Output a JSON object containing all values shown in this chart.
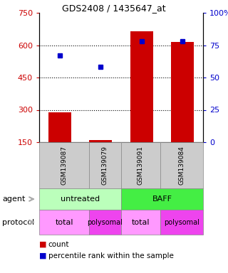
{
  "title": "GDS2408 / 1435647_at",
  "samples": [
    "GSM139087",
    "GSM139079",
    "GSM139091",
    "GSM139084"
  ],
  "bar_counts": [
    290,
    160,
    665,
    615
  ],
  "percentile_ranks": [
    67,
    58,
    78,
    78
  ],
  "ylim_left": [
    150,
    750
  ],
  "ylim_right": [
    0,
    100
  ],
  "yticks_left": [
    150,
    300,
    450,
    600,
    750
  ],
  "yticks_right": [
    0,
    25,
    50,
    75,
    100
  ],
  "ytick_labels_right": [
    "0",
    "25",
    "50",
    "75",
    "100%"
  ],
  "bar_color": "#cc0000",
  "dot_color": "#0000cc",
  "agent_labels": [
    "untreated",
    "BAFF"
  ],
  "agent_color_light": "#bbffbb",
  "agent_color_dark": "#44ee44",
  "protocol_labels": [
    "total",
    "polysomal",
    "total",
    "polysomal"
  ],
  "proto_color_light": "#ff99ff",
  "proto_color_dark": "#ee44ee",
  "sample_box_color": "#cccccc",
  "legend_count_color": "#cc0000",
  "legend_pct_color": "#0000cc",
  "legend_count_label": "count",
  "legend_pct_label": "percentile rank within the sample",
  "arrow_color": "#aaaaaa",
  "agent_row_label": "agent",
  "protocol_row_label": "protocol"
}
